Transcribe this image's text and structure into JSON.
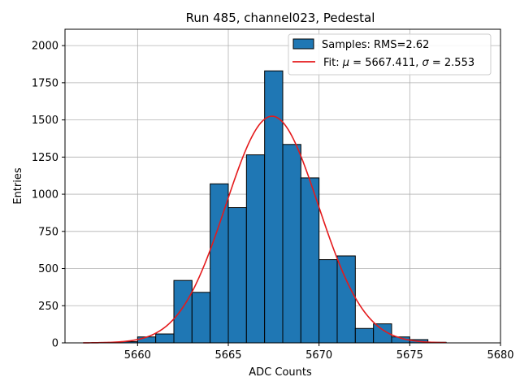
{
  "chart_data": {
    "type": "bar",
    "title": "Run 485, channel023, Pedestal",
    "xlabel": "ADC Counts",
    "ylabel": "Entries",
    "xlim": [
      5656,
      5680
    ],
    "ylim": [
      0,
      2110
    ],
    "grid": true,
    "legend_position": "top-right",
    "x_ticks": [
      5660,
      5665,
      5670,
      5675,
      5680
    ],
    "y_ticks": [
      0,
      250,
      500,
      750,
      1000,
      1250,
      1500,
      1750,
      2000
    ],
    "histogram": {
      "name": "Samples: RMS=2.62",
      "color": "#1f77b4",
      "edge_color": "#000000",
      "bin_width": 1,
      "bin_starts": [
        5658,
        5659,
        5660,
        5661,
        5662,
        5663,
        5664,
        5665,
        5666,
        5667,
        5668,
        5669,
        5670,
        5671,
        5672,
        5673,
        5674,
        5675,
        5676
      ],
      "values": [
        3,
        8,
        40,
        60,
        420,
        340,
        1070,
        910,
        1265,
        1830,
        1335,
        1110,
        560,
        585,
        97,
        128,
        40,
        22,
        4
      ]
    },
    "fit": {
      "name_prefix": "Fit: ",
      "name_mu": "μ",
      "name_mid": " = 5667.411, ",
      "name_sigma": "σ",
      "name_suffix": " = 2.553",
      "color": "#e41a1c",
      "mu": 5667.411,
      "sigma": 2.553,
      "amplitude": 1525,
      "x_range": [
        5657,
        5677
      ]
    }
  }
}
